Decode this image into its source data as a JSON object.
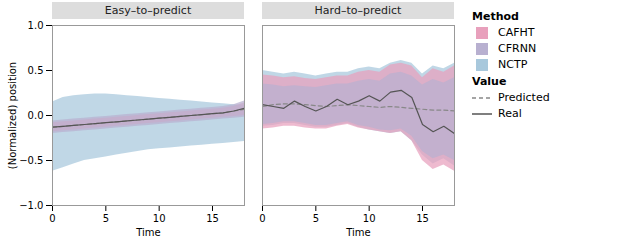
{
  "chart_data": [
    {
      "type": "line",
      "title": "Easy–to–predict",
      "xlabel": "Time",
      "ylabel": "(Normalized) position",
      "x": [
        0,
        1,
        2,
        3,
        4,
        5,
        6,
        7,
        8,
        9,
        10,
        11,
        12,
        13,
        14,
        15,
        16,
        17,
        18
      ],
      "xlim": [
        0,
        18
      ],
      "xticks": [
        0,
        5,
        10,
        15
      ],
      "ylim": [
        -1.0,
        1.0
      ],
      "yticks": [
        {
          "value": -1.0,
          "label": "−1.0"
        },
        {
          "value": -0.5,
          "label": "−0.5"
        },
        {
          "value": 0.0,
          "label": "0.0"
        },
        0.5,
        {
          "value": 1.0,
          "label": "1.0"
        }
      ],
      "grid": false,
      "legend": "right",
      "series": [
        {
          "name": "CAFHT",
          "group": "Method",
          "type": "band",
          "color": "#E8A0BC",
          "lower": [
            -0.18,
            -0.17,
            -0.16,
            -0.15,
            -0.14,
            -0.13,
            -0.12,
            -0.11,
            -0.1,
            -0.09,
            -0.08,
            -0.07,
            -0.06,
            -0.05,
            -0.04,
            -0.03,
            -0.02,
            -0.01,
            0.0
          ],
          "upper": [
            -0.08,
            -0.07,
            -0.06,
            -0.05,
            -0.04,
            -0.03,
            -0.02,
            -0.01,
            0.0,
            0.01,
            0.02,
            0.03,
            0.04,
            0.05,
            0.06,
            0.07,
            0.08,
            0.1,
            0.14
          ]
        },
        {
          "name": "CFRNN",
          "group": "Method",
          "type": "band",
          "color": "#B8B0D0",
          "lower": [
            -0.2,
            -0.19,
            -0.18,
            -0.17,
            -0.16,
            -0.15,
            -0.14,
            -0.13,
            -0.12,
            -0.11,
            -0.1,
            -0.09,
            -0.08,
            -0.07,
            -0.06,
            -0.05,
            -0.04,
            -0.03,
            -0.02
          ],
          "upper": [
            -0.06,
            -0.05,
            -0.04,
            -0.03,
            -0.02,
            -0.01,
            0.0,
            0.01,
            0.02,
            0.03,
            0.04,
            0.05,
            0.06,
            0.07,
            0.08,
            0.09,
            0.1,
            0.12,
            0.16
          ]
        },
        {
          "name": "NCTP",
          "group": "Method",
          "type": "band",
          "color": "#A8C8DC",
          "lower": [
            -0.62,
            -0.58,
            -0.54,
            -0.5,
            -0.48,
            -0.46,
            -0.44,
            -0.42,
            -0.4,
            -0.38,
            -0.37,
            -0.36,
            -0.35,
            -0.34,
            -0.33,
            -0.32,
            -0.31,
            -0.3,
            -0.29
          ],
          "upper": [
            0.15,
            0.2,
            0.22,
            0.23,
            0.24,
            0.24,
            0.23,
            0.22,
            0.21,
            0.2,
            0.19,
            0.18,
            0.17,
            0.16,
            0.15,
            0.14,
            0.13,
            0.12,
            0.11
          ]
        },
        {
          "name": "Predicted",
          "group": "Value",
          "type": "line",
          "line_style": "dashed",
          "color": "#888888",
          "values": [
            -0.13,
            -0.12,
            -0.11,
            -0.1,
            -0.09,
            -0.08,
            -0.07,
            -0.06,
            -0.05,
            -0.04,
            -0.03,
            -0.02,
            -0.01,
            0.0,
            0.01,
            0.02,
            0.03,
            0.05,
            0.07
          ]
        },
        {
          "name": "Real",
          "group": "Value",
          "type": "line",
          "line_style": "solid",
          "color": "#555555",
          "values": [
            -0.13,
            -0.12,
            -0.11,
            -0.1,
            -0.09,
            -0.08,
            -0.07,
            -0.06,
            -0.05,
            -0.04,
            -0.03,
            -0.02,
            -0.01,
            0.0,
            0.01,
            0.02,
            0.03,
            0.05,
            0.08
          ]
        }
      ]
    },
    {
      "type": "line",
      "title": "Hard–to–predict",
      "xlabel": "Time",
      "x": [
        0,
        1,
        2,
        3,
        4,
        5,
        6,
        7,
        8,
        9,
        10,
        11,
        12,
        13,
        14,
        15,
        16,
        17,
        18
      ],
      "xlim": [
        0,
        18
      ],
      "xticks": [
        0,
        5,
        10,
        15
      ],
      "ylim": [
        -1.0,
        1.0
      ],
      "yticks": [
        {
          "value": -1.0,
          "label": "−1.0"
        },
        {
          "value": -0.5,
          "label": "−0.5"
        },
        {
          "value": 0.0,
          "label": "0.0"
        },
        0.5,
        {
          "value": 1.0,
          "label": "1.0"
        }
      ],
      "tick_labels": "x",
      "grid": false,
      "legend": "right",
      "series": [
        {
          "name": "CAFHT",
          "group": "Method",
          "type": "band",
          "color": "#E8A0BC",
          "lower": [
            -0.15,
            -0.14,
            -0.12,
            -0.12,
            -0.14,
            -0.15,
            -0.15,
            -0.12,
            -0.1,
            -0.14,
            -0.16,
            -0.18,
            -0.2,
            -0.18,
            -0.28,
            -0.5,
            -0.6,
            -0.55,
            -0.62
          ],
          "upper": [
            0.45,
            0.44,
            0.42,
            0.43,
            0.41,
            0.4,
            0.42,
            0.44,
            0.44,
            0.48,
            0.5,
            0.48,
            0.56,
            0.58,
            0.55,
            0.42,
            0.52,
            0.48,
            0.55
          ]
        },
        {
          "name": "CFRNN",
          "group": "Method",
          "type": "band",
          "color": "#B8B0D0",
          "lower": [
            -0.1,
            -0.09,
            -0.07,
            -0.07,
            -0.09,
            -0.11,
            -0.11,
            -0.09,
            -0.07,
            -0.11,
            -0.13,
            -0.16,
            -0.17,
            -0.15,
            -0.23,
            -0.4,
            -0.48,
            -0.44,
            -0.5
          ],
          "upper": [
            0.35,
            0.34,
            0.32,
            0.33,
            0.32,
            0.31,
            0.33,
            0.35,
            0.35,
            0.38,
            0.4,
            0.38,
            0.46,
            0.48,
            0.44,
            0.34,
            0.4,
            0.36,
            0.42
          ]
        },
        {
          "name": "NCTP",
          "group": "Method",
          "type": "band",
          "color": "#A8C8DC",
          "lower": [
            -0.12,
            -0.11,
            -0.09,
            -0.09,
            -0.11,
            -0.13,
            -0.13,
            -0.11,
            -0.09,
            -0.13,
            -0.16,
            -0.18,
            -0.2,
            -0.18,
            -0.28,
            -0.44,
            -0.54,
            -0.48,
            -0.56
          ],
          "upper": [
            0.5,
            0.48,
            0.46,
            0.48,
            0.46,
            0.44,
            0.46,
            0.48,
            0.48,
            0.52,
            0.54,
            0.52,
            0.58,
            0.61,
            0.58,
            0.46,
            0.55,
            0.52,
            0.58
          ]
        },
        {
          "name": "Predicted",
          "group": "Value",
          "type": "line",
          "line_style": "dashed",
          "color": "#888888",
          "values": [
            0.1,
            0.12,
            0.13,
            0.13,
            0.12,
            0.11,
            0.1,
            0.11,
            0.12,
            0.11,
            0.1,
            0.09,
            0.1,
            0.09,
            0.08,
            0.07,
            0.06,
            0.06,
            0.05
          ]
        },
        {
          "name": "Real",
          "group": "Value",
          "type": "line",
          "line_style": "solid",
          "color": "#555555",
          "values": [
            0.12,
            0.1,
            0.08,
            0.16,
            0.1,
            0.05,
            0.1,
            0.18,
            0.12,
            0.16,
            0.22,
            0.16,
            0.26,
            0.28,
            0.2,
            -0.1,
            -0.18,
            -0.12,
            -0.2
          ]
        }
      ]
    }
  ]
}
